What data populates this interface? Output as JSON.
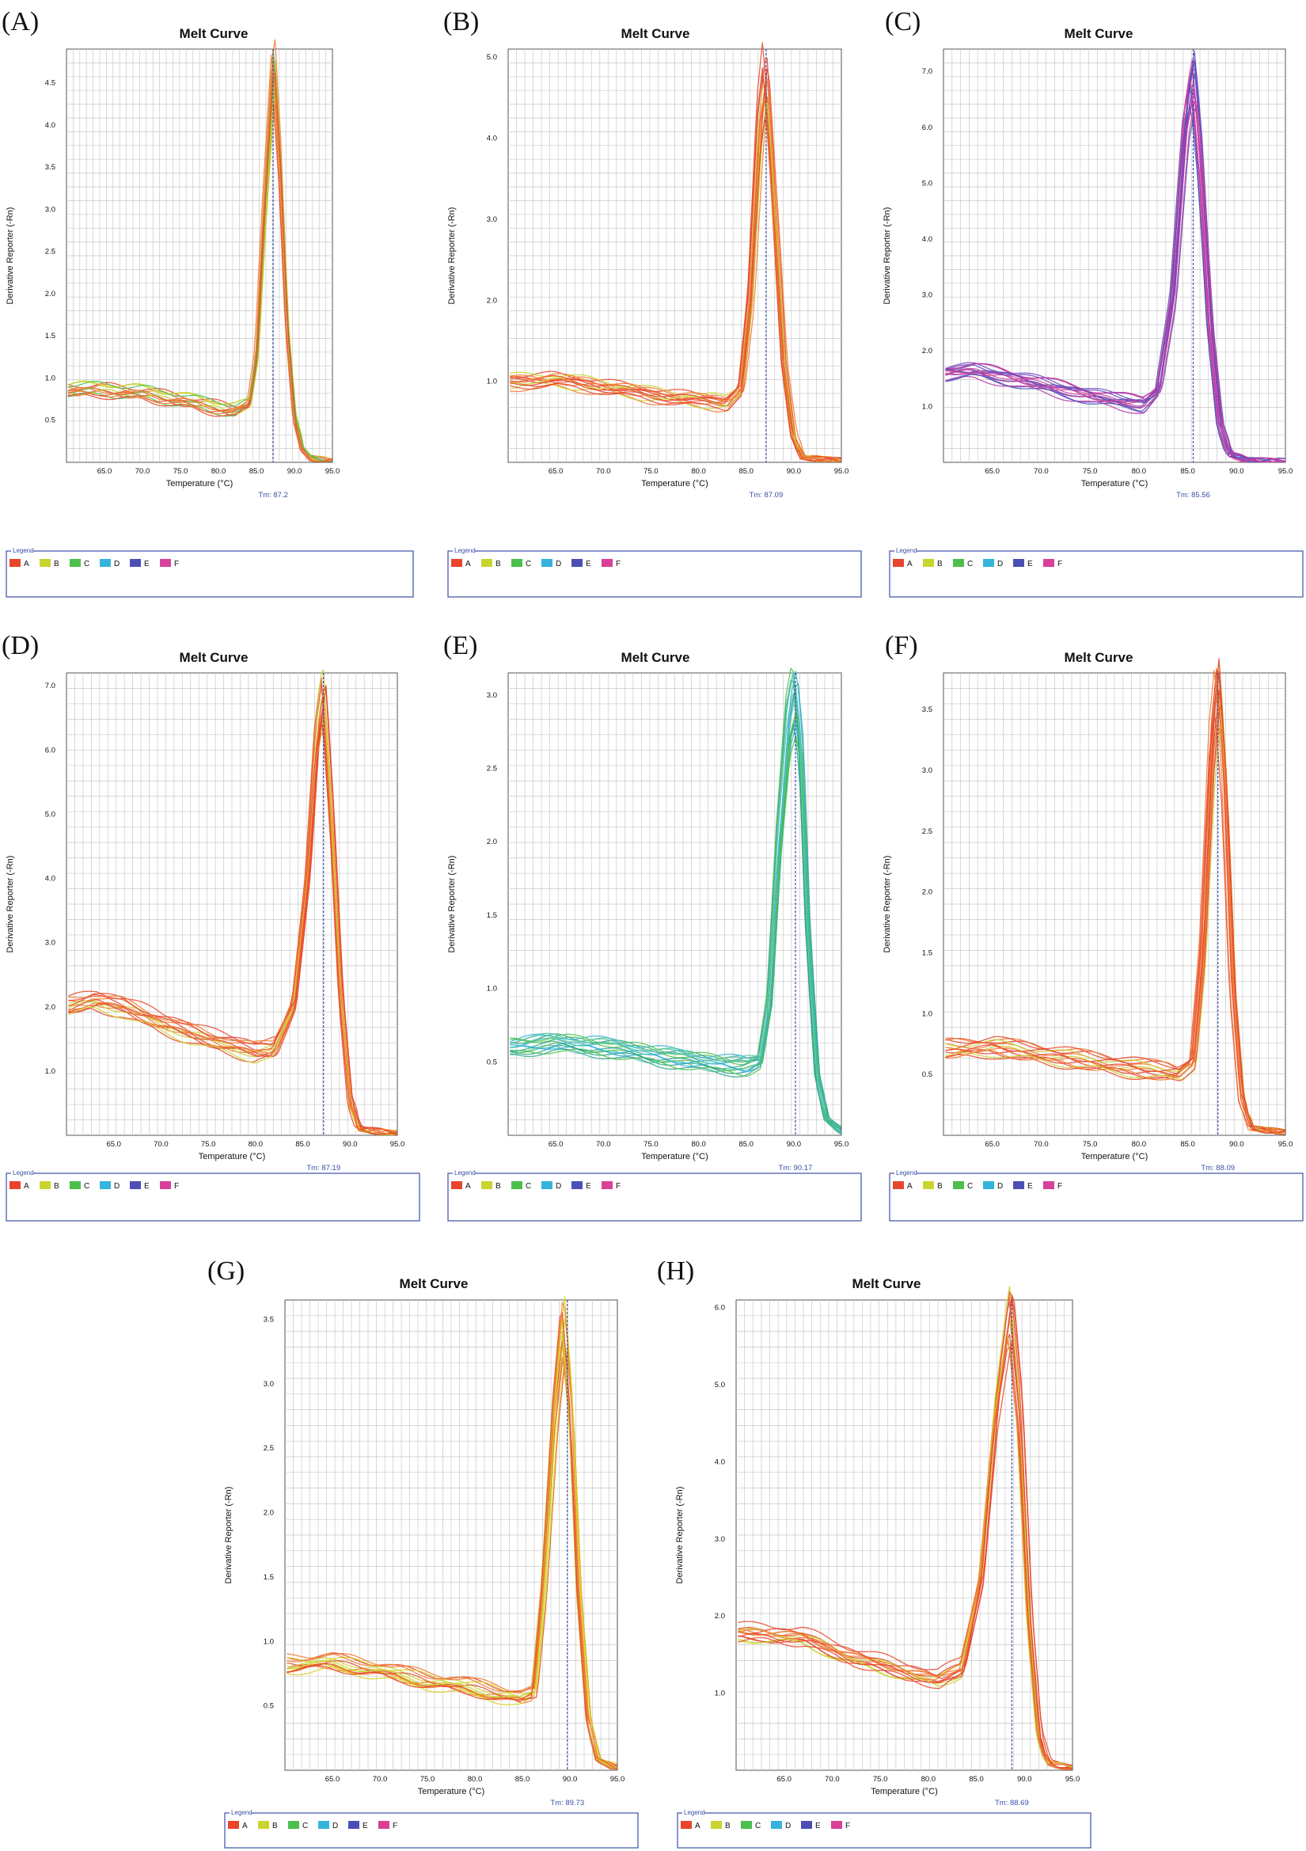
{
  "figure": {
    "legend_title": "Legend",
    "legend_entries": [
      {
        "label": "A",
        "color": "#e8452c"
      },
      {
        "label": "B",
        "color": "#c9d430"
      },
      {
        "label": "C",
        "color": "#4cbf4c"
      },
      {
        "label": "D",
        "color": "#34b4dc"
      },
      {
        "label": "E",
        "color": "#4b4fb5"
      },
      {
        "label": "F",
        "color": "#d8409a"
      }
    ],
    "tm_prefix": "Tm: "
  },
  "chart_data": [
    {
      "panel": "(A)",
      "type": "line",
      "title": "Melt Curve",
      "xlabel": "Temperature (°C)",
      "ylabel": "Derivative Reporter (-Rn)",
      "xlim": [
        60,
        95
      ],
      "ylim": [
        0,
        4.9
      ],
      "xticks": [
        65.0,
        70.0,
        75.0,
        80.0,
        85.0,
        90.0,
        95.0
      ],
      "yticks": [
        0.5,
        1.0,
        1.5,
        2.0,
        2.5,
        3.0,
        3.5,
        4.0,
        4.5
      ],
      "grid": true,
      "tm": "87.2",
      "tm_value": 87.2,
      "series": [
        {
          "colors": [
            "#e8452c",
            "#f07a30",
            "#c9d430",
            "#4cbf4c"
          ],
          "count": 14,
          "baseline": [
            [
              60,
              0.86
            ],
            [
              65,
              0.86
            ],
            [
              70,
              0.82
            ],
            [
              75,
              0.74
            ],
            [
              78,
              0.68
            ],
            [
              80,
              0.65
            ],
            [
              82,
              0.62
            ],
            [
              84,
              0.7
            ],
            [
              85,
              1.3
            ],
            [
              86,
              3.0
            ],
            [
              87.2,
              4.7
            ],
            [
              88,
              3.6
            ],
            [
              89,
              1.6
            ],
            [
              90,
              0.5
            ],
            [
              91,
              0.15
            ],
            [
              92,
              0.05
            ],
            [
              95,
              0.02
            ]
          ],
          "peak_height": 4.7,
          "peak_spread": 0.1
        }
      ]
    },
    {
      "panel": "(B)",
      "type": "line",
      "title": "Melt Curve",
      "xlabel": "Temperature (°C)",
      "ylabel": "Derivative Reporter (-Rn)",
      "xlim": [
        60,
        95
      ],
      "ylim": [
        0,
        5.1
      ],
      "xticks": [
        65.0,
        70.0,
        75.0,
        80.0,
        85.0,
        90.0,
        95.0
      ],
      "yticks": [
        1.0,
        2.0,
        3.0,
        4.0,
        5.0
      ],
      "grid": true,
      "tm": "87.09",
      "tm_value": 87.09,
      "series": [
        {
          "colors": [
            "#e8452c",
            "#f07a30",
            "#c9d430",
            "#e8452c"
          ],
          "count": 14,
          "baseline": [
            [
              60,
              0.98
            ],
            [
              65,
              1.0
            ],
            [
              70,
              0.92
            ],
            [
              75,
              0.82
            ],
            [
              80,
              0.75
            ],
            [
              83,
              0.72
            ],
            [
              84.5,
              0.9
            ],
            [
              85.5,
              2.0
            ],
            [
              86.5,
              4.2
            ],
            [
              87.09,
              4.8
            ],
            [
              88,
              3.2
            ],
            [
              89,
              1.2
            ],
            [
              90,
              0.3
            ],
            [
              91,
              0.06
            ],
            [
              95,
              0.02
            ]
          ],
          "peak_height": 4.8,
          "peak_spread": 0.12
        }
      ]
    },
    {
      "panel": "(C)",
      "type": "line",
      "title": "Melt Curve",
      "xlabel": "Temperature (°C)",
      "ylabel": "Derivative Reporter (-Rn)",
      "xlim": [
        60,
        95
      ],
      "ylim": [
        0,
        7.4
      ],
      "xticks": [
        65.0,
        70.0,
        75.0,
        80.0,
        85.0,
        90.0,
        95.0
      ],
      "yticks": [
        1.0,
        2.0,
        3.0,
        4.0,
        5.0,
        6.0,
        7.0
      ],
      "grid": true,
      "tm": "85.56",
      "tm_value": 85.56,
      "series": [
        {
          "colors": [
            "#4b4fb5",
            "#6a4bc0",
            "#d8409a",
            "#b43aa8"
          ],
          "count": 16,
          "baseline": [
            [
              60,
              1.6
            ],
            [
              63,
              1.65
            ],
            [
              66,
              1.55
            ],
            [
              70,
              1.4
            ],
            [
              75,
              1.2
            ],
            [
              78,
              1.1
            ],
            [
              80.5,
              1.05
            ],
            [
              82,
              1.3
            ],
            [
              83.5,
              3.0
            ],
            [
              84.8,
              6.2
            ],
            [
              85.56,
              7.0
            ],
            [
              86.3,
              5.5
            ],
            [
              87.3,
              2.5
            ],
            [
              88.3,
              0.7
            ],
            [
              89.3,
              0.15
            ],
            [
              91,
              0.04
            ],
            [
              95,
              0.02
            ]
          ],
          "peak_height": 7.0,
          "peak_spread": 0.1
        }
      ]
    },
    {
      "panel": "(D)",
      "type": "line",
      "title": "Melt Curve",
      "xlabel": "Temperature (°C)",
      "ylabel": "Derivative Reporter (-Rn)",
      "xlim": [
        60,
        95
      ],
      "ylim": [
        0,
        7.2
      ],
      "xticks": [
        65.0,
        70.0,
        75.0,
        80.0,
        85.0,
        90.0,
        95.0
      ],
      "yticks": [
        1.0,
        2.0,
        3.0,
        4.0,
        5.0,
        6.0,
        7.0
      ],
      "grid": true,
      "tm": "87.19",
      "tm_value": 87.19,
      "series": [
        {
          "colors": [
            "#e8452c",
            "#f07a30",
            "#c9d430",
            "#e8452c"
          ],
          "count": 14,
          "baseline": [
            [
              60,
              2.0
            ],
            [
              63,
              2.1
            ],
            [
              66,
              2.0
            ],
            [
              70,
              1.75
            ],
            [
              75,
              1.5
            ],
            [
              80,
              1.3
            ],
            [
              82,
              1.35
            ],
            [
              84,
              2.0
            ],
            [
              85.5,
              4.0
            ],
            [
              86.5,
              6.2
            ],
            [
              87.19,
              6.9
            ],
            [
              88,
              5.0
            ],
            [
              89,
              2.2
            ],
            [
              90,
              0.5
            ],
            [
              91,
              0.1
            ],
            [
              95,
              0.02
            ]
          ],
          "peak_height": 6.8,
          "peak_spread": 0.08
        }
      ]
    },
    {
      "panel": "(E)",
      "type": "line",
      "title": "Melt Curve",
      "xlabel": "Temperature (°C)",
      "ylabel": "Derivative Reporter (-Rn)",
      "xlim": [
        60,
        95
      ],
      "ylim": [
        0,
        3.15
      ],
      "xticks": [
        65.0,
        70.0,
        75.0,
        80.0,
        85.0,
        90.0,
        95.0
      ],
      "yticks": [
        0.5,
        1.0,
        1.5,
        2.0,
        2.5,
        3.0
      ],
      "grid": true,
      "tm": "90.17",
      "tm_value": 90.17,
      "series": [
        {
          "colors": [
            "#34b4dc",
            "#4cbf4c",
            "#2aa58e",
            "#5bc6a0"
          ],
          "count": 16,
          "baseline": [
            [
              60,
              0.6
            ],
            [
              65,
              0.63
            ],
            [
              70,
              0.6
            ],
            [
              75,
              0.55
            ],
            [
              80,
              0.5
            ],
            [
              85,
              0.47
            ],
            [
              86.5,
              0.5
            ],
            [
              87.5,
              0.9
            ],
            [
              88.5,
              2.0
            ],
            [
              89.5,
              2.8
            ],
            [
              90.17,
              3.0
            ],
            [
              90.8,
              2.6
            ],
            [
              91.5,
              1.4
            ],
            [
              92.5,
              0.4
            ],
            [
              93.5,
              0.1
            ],
            [
              95,
              0.03
            ]
          ],
          "peak_height": 2.9,
          "peak_spread": 0.1
        }
      ]
    },
    {
      "panel": "(F)",
      "type": "line",
      "title": "Melt Curve",
      "xlabel": "Temperature (°C)",
      "ylabel": "Derivative Reporter (-Rn)",
      "xlim": [
        60,
        95
      ],
      "ylim": [
        0,
        3.8
      ],
      "xticks": [
        65.0,
        70.0,
        75.0,
        80.0,
        85.0,
        90.0,
        95.0
      ],
      "yticks": [
        0.5,
        1.0,
        1.5,
        2.0,
        2.5,
        3.0,
        3.5
      ],
      "grid": true,
      "tm": "88.09",
      "tm_value": 88.09,
      "series": [
        {
          "colors": [
            "#e8452c",
            "#f07a30",
            "#c9d430",
            "#e8452c"
          ],
          "count": 14,
          "baseline": [
            [
              60,
              0.7
            ],
            [
              65,
              0.72
            ],
            [
              70,
              0.66
            ],
            [
              75,
              0.6
            ],
            [
              80,
              0.54
            ],
            [
              84,
              0.5
            ],
            [
              85.5,
              0.6
            ],
            [
              86.5,
              1.5
            ],
            [
              87.5,
              3.2
            ],
            [
              88.09,
              3.65
            ],
            [
              88.8,
              2.8
            ],
            [
              89.6,
              1.2
            ],
            [
              90.5,
              0.3
            ],
            [
              91.5,
              0.06
            ],
            [
              95,
              0.02
            ]
          ],
          "peak_height": 3.6,
          "peak_spread": 0.08
        }
      ]
    },
    {
      "panel": "(G)",
      "type": "line",
      "title": "Melt Curve",
      "xlabel": "Temperature (°C)",
      "ylabel": "Derivative Reporter (-Rn)",
      "xlim": [
        60,
        95
      ],
      "ylim": [
        0,
        3.65
      ],
      "xticks": [
        65.0,
        70.0,
        75.0,
        80.0,
        85.0,
        90.0,
        95.0
      ],
      "yticks": [
        0.5,
        1.0,
        1.5,
        2.0,
        2.5,
        3.0,
        3.5
      ],
      "grid": true,
      "tm": "89.73",
      "tm_value": 89.73,
      "series": [
        {
          "colors": [
            "#e8452c",
            "#f07a30",
            "#c9d430",
            "#d8d020"
          ],
          "count": 14,
          "baseline": [
            [
              60,
              0.82
            ],
            [
              65,
              0.84
            ],
            [
              70,
              0.78
            ],
            [
              75,
              0.7
            ],
            [
              80,
              0.64
            ],
            [
              85,
              0.56
            ],
            [
              86.3,
              0.6
            ],
            [
              87.3,
              1.4
            ],
            [
              88.5,
              2.8
            ],
            [
              89.4,
              3.5
            ],
            [
              90.2,
              2.8
            ],
            [
              91,
              1.4
            ],
            [
              92,
              0.4
            ],
            [
              93,
              0.08
            ],
            [
              95,
              0.02
            ]
          ],
          "peak_height": 3.5,
          "peak_spread": 0.08
        }
      ]
    },
    {
      "panel": "(H)",
      "type": "line",
      "title": "Melt Curve",
      "xlabel": "Temperature (°C)",
      "ylabel": "Derivative Reporter (-Rn)",
      "xlim": [
        60,
        95
      ],
      "ylim": [
        0,
        6.1
      ],
      "xticks": [
        65.0,
        70.0,
        75.0,
        80.0,
        85.0,
        90.0,
        95.0
      ],
      "yticks": [
        1.0,
        2.0,
        3.0,
        4.0,
        5.0,
        6.0
      ],
      "grid": true,
      "tm": "88.69",
      "tm_value": 88.69,
      "series": [
        {
          "colors": [
            "#e8452c",
            "#f07a30",
            "#c9d430",
            "#e8452c"
          ],
          "count": 14,
          "baseline": [
            [
              60,
              1.8
            ],
            [
              63,
              1.8
            ],
            [
              67,
              1.75
            ],
            [
              72,
              1.5
            ],
            [
              78,
              1.3
            ],
            [
              81,
              1.2
            ],
            [
              83.5,
              1.35
            ],
            [
              85.5,
              2.5
            ],
            [
              87,
              4.6
            ],
            [
              88.5,
              5.9
            ],
            [
              89.5,
              4.6
            ],
            [
              90.5,
              2.0
            ],
            [
              91.5,
              0.5
            ],
            [
              92.5,
              0.1
            ],
            [
              95,
              0.02
            ]
          ],
          "peak_height": 5.8,
          "peak_spread": 0.08
        }
      ]
    }
  ]
}
